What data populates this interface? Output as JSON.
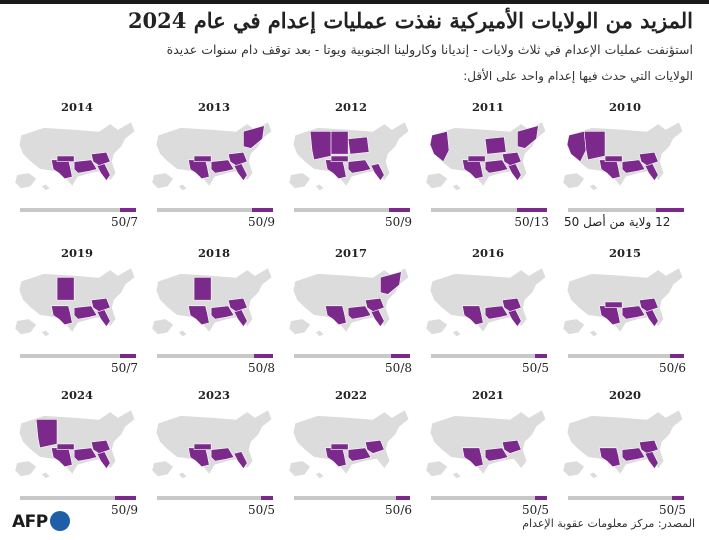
{
  "title": "المزيد من الولايات الأميركية نفذت عمليات إعدام في عام 2024",
  "subtitle": "استؤنفت عمليات الإعدام في ثلاث ولايات - إنديانا وكارولينا الجنوبية ويوتا - بعد توقف دام سنوات عديدة",
  "legend_text": "الولايات التي حدث فيها إعدام واحد على الأقل:",
  "annotation": "12 ولاية من أصل 50",
  "source": "المصدر: مركز معلومات عقوبة الإعدام",
  "logo": "AFP",
  "colors": {
    "executed": "#7b2a8c",
    "other": "#dcdcdc",
    "bar_bg": "#c8c8c8"
  },
  "chart_data": {
    "type": "bar",
    "title": "المزيد من الولايات الأميركية نفذت عمليات إعدام في عام 2024",
    "total_states": 50,
    "categories": [
      "2010",
      "2011",
      "2012",
      "2013",
      "2014",
      "2015",
      "2016",
      "2017",
      "2018",
      "2019",
      "2020",
      "2021",
      "2022",
      "2023",
      "2024"
    ],
    "values": [
      12,
      13,
      9,
      9,
      7,
      6,
      5,
      8,
      8,
      7,
      5,
      5,
      6,
      5,
      9
    ],
    "labels": [
      "12 ولاية من أصل 50",
      "50/13",
      "50/9",
      "50/9",
      "50/7",
      "50/6",
      "50/5",
      "50/8",
      "50/8",
      "50/7",
      "50/5",
      "50/5",
      "50/6",
      "50/5",
      "50/9"
    ]
  }
}
